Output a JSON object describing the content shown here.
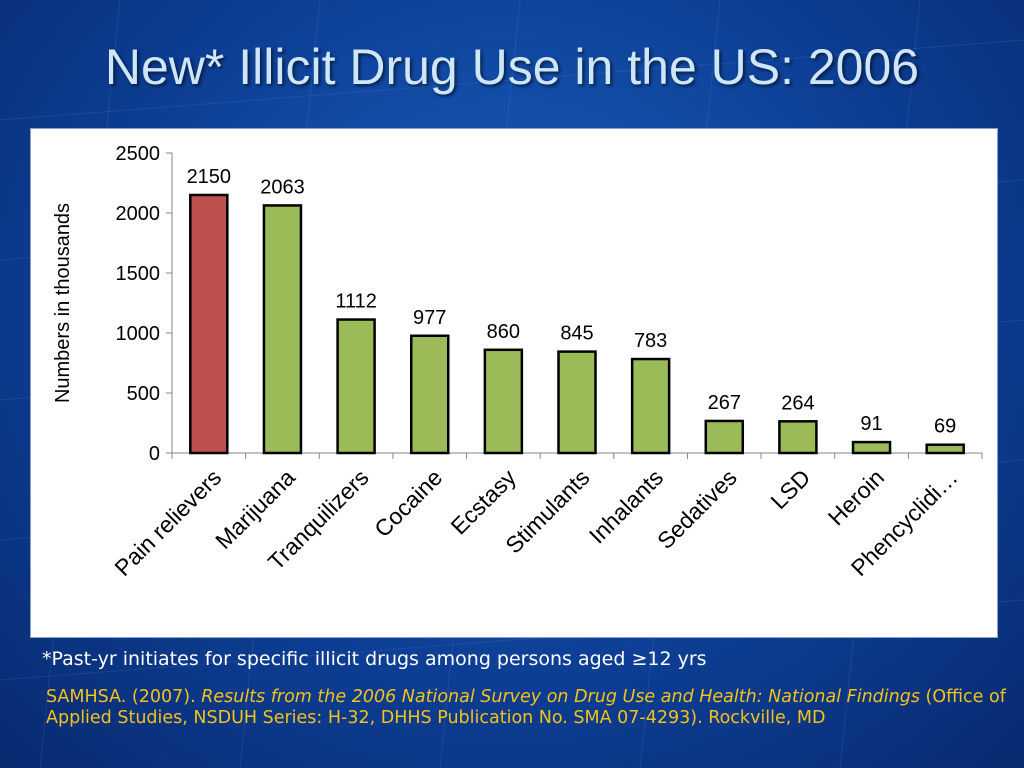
{
  "slide": {
    "title": "New* Illicit Drug Use in the US: 2006",
    "footnote": "*Past-yr initiates for specific illicit drugs among persons aged ≥12 yrs",
    "citation_part1": "SAMHSA. (2007). ",
    "citation_italic": "Results from the 2006 National Survey on Drug Use and Health: National Findings",
    "citation_part2": " (Office of Applied Studies, NSDUH Series: H-32, DHHS Publication No. SMA 07-4293). Rockville, MD",
    "colors": {
      "background": "#0d3f95",
      "title": "#cfe6f9",
      "citation": "#f3c21b",
      "highlight_bar": "#c0504d",
      "bar": "#9bbb59"
    }
  },
  "chart_data": {
    "type": "bar",
    "title": "",
    "xlabel": "",
    "ylabel": "Numbers in thousands",
    "ylim": [
      0,
      2500
    ],
    "yticks": [
      0,
      500,
      1000,
      1500,
      2000,
      2500
    ],
    "categories": [
      "Pain relievers",
      "Marijuana",
      "Tranquilizers",
      "Cocaine",
      "Ecstasy",
      "Stimulants",
      "Inhalants",
      "Sedatives",
      "LSD",
      "Heroin",
      "Phencyclidi…"
    ],
    "values": [
      2150,
      2063,
      1112,
      977,
      860,
      845,
      783,
      267,
      264,
      91,
      69
    ],
    "bar_colors": [
      "#c0504d",
      "#9bbb59",
      "#9bbb59",
      "#9bbb59",
      "#9bbb59",
      "#9bbb59",
      "#9bbb59",
      "#9bbb59",
      "#9bbb59",
      "#9bbb59",
      "#9bbb59"
    ],
    "data_labels": true,
    "grid": false,
    "legend": "none"
  }
}
